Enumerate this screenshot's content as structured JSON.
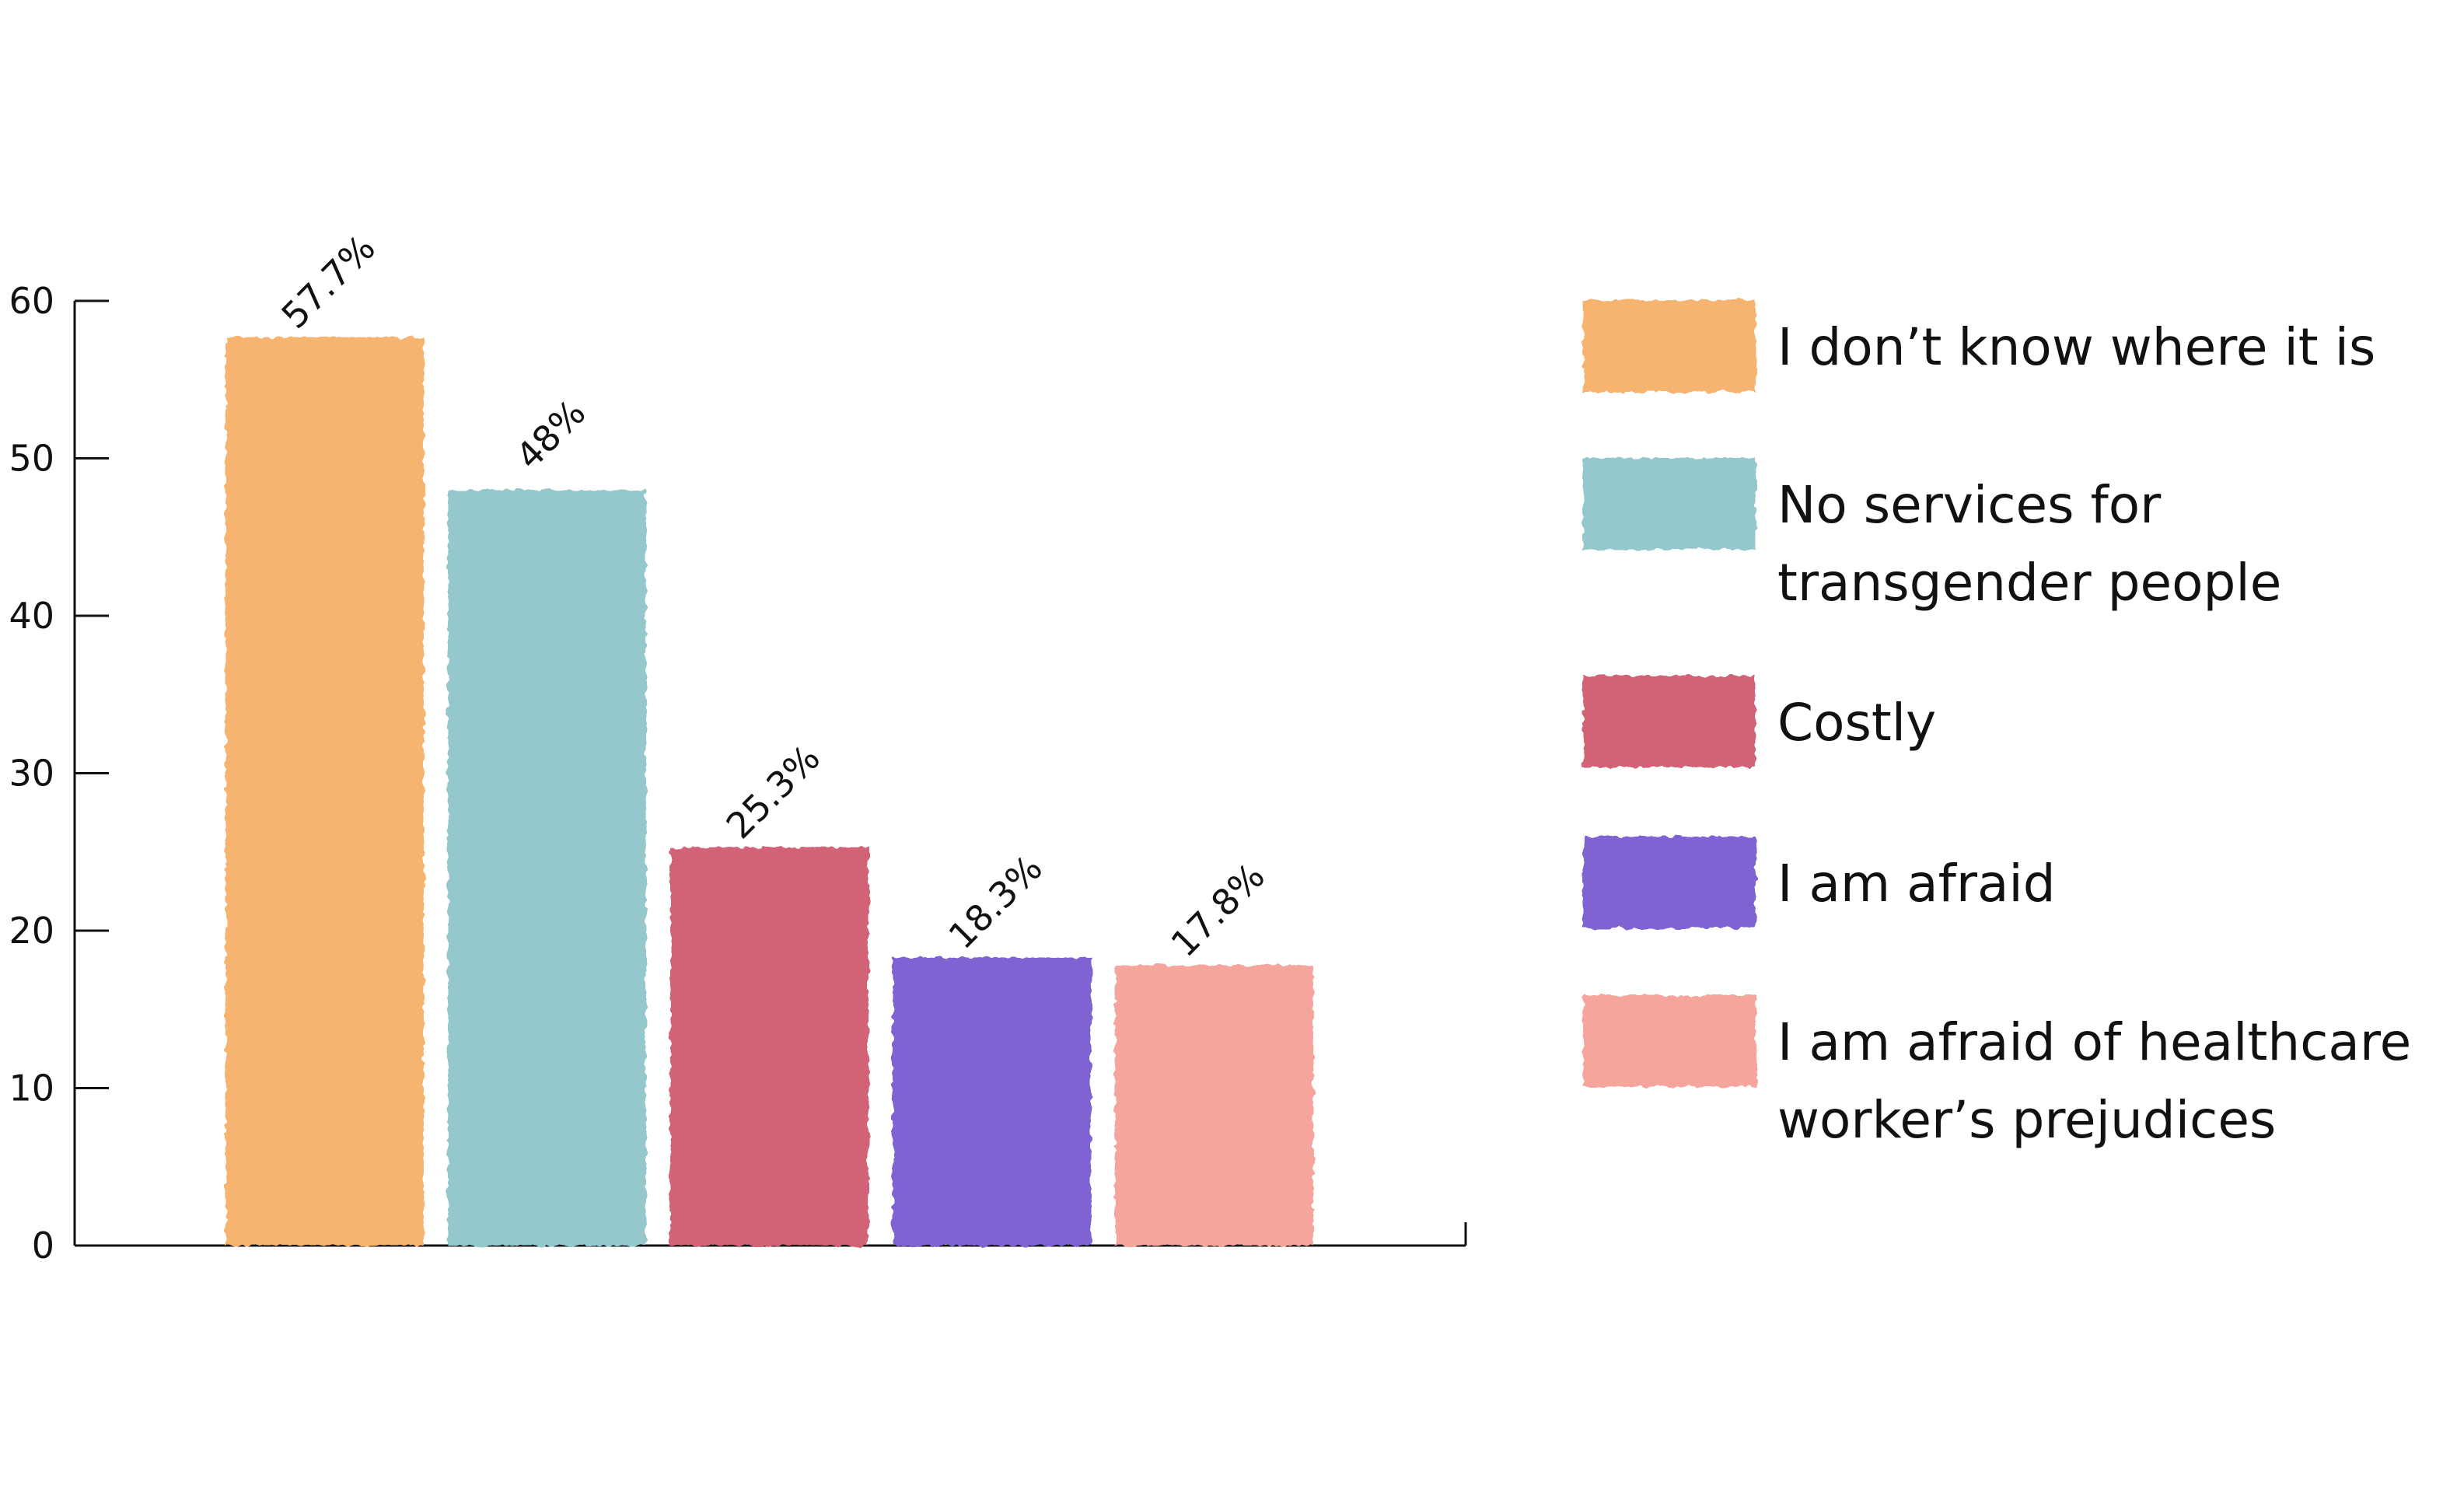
{
  "chart_data": {
    "type": "bar",
    "categories": [
      "I don’t know where it is",
      "No services for transgender people",
      "Costly",
      "I am afraid",
      "I am afraid of healthcare worker’s prejudices"
    ],
    "values": [
      57.7,
      48,
      25.3,
      18.3,
      17.8
    ],
    "value_labels": [
      "57.7%",
      "48%",
      "25.3%",
      "18.3%",
      "17.8%"
    ],
    "colors": [
      "#f7b36f",
      "#94c8cc",
      "#d26274",
      "#8063d3",
      "#f5a59b"
    ],
    "legend": [
      {
        "lines": [
          "I don’t know where it is"
        ]
      },
      {
        "lines": [
          "No services for",
          "transgender people"
        ]
      },
      {
        "lines": [
          "Costly"
        ]
      },
      {
        "lines": [
          "I am afraid"
        ]
      },
      {
        "lines": [
          "I am afraid of healthcare",
          "worker’s prejudices"
        ]
      }
    ],
    "y_ticks": [
      "0",
      "10",
      "20",
      "30",
      "40",
      "50",
      "60"
    ],
    "ylim": [
      0,
      60
    ],
    "title": "",
    "xlabel": "",
    "ylabel": "",
    "grid": false,
    "legend_placement": "right"
  }
}
